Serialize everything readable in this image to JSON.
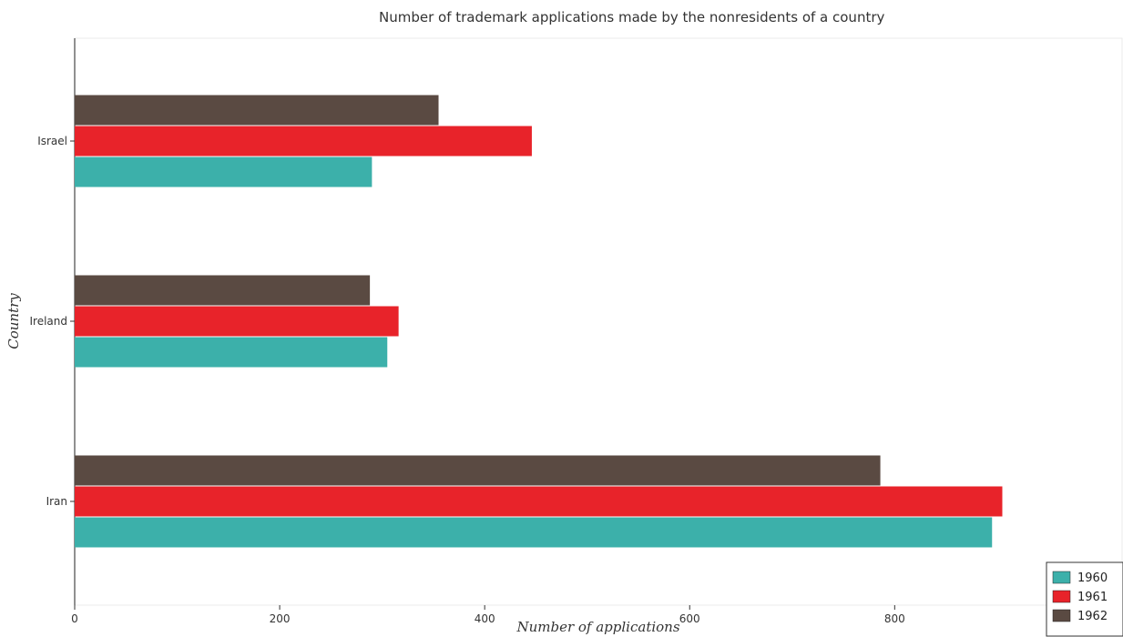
{
  "chart_data": {
    "type": "bar",
    "orientation": "horizontal",
    "title": "Number of trademark applications made by the nonresidents of a country",
    "xlabel": "Number of applications",
    "ylabel": "Country",
    "categories": [
      "Iran",
      "Ireland",
      "Israel"
    ],
    "series": [
      {
        "name": "1960",
        "color": "#3cb0aa",
        "values": [
          895,
          305,
          290
        ]
      },
      {
        "name": "1961",
        "color": "#e8232a",
        "values": [
          905,
          316,
          446
        ]
      },
      {
        "name": "1962",
        "color": "#5a4a42",
        "values": [
          786,
          288,
          355
        ]
      }
    ],
    "xlim": [
      0,
      960
    ],
    "xticks": [
      0,
      200,
      400,
      600,
      800
    ],
    "grid": false,
    "legend_position": "bottom-right"
  }
}
